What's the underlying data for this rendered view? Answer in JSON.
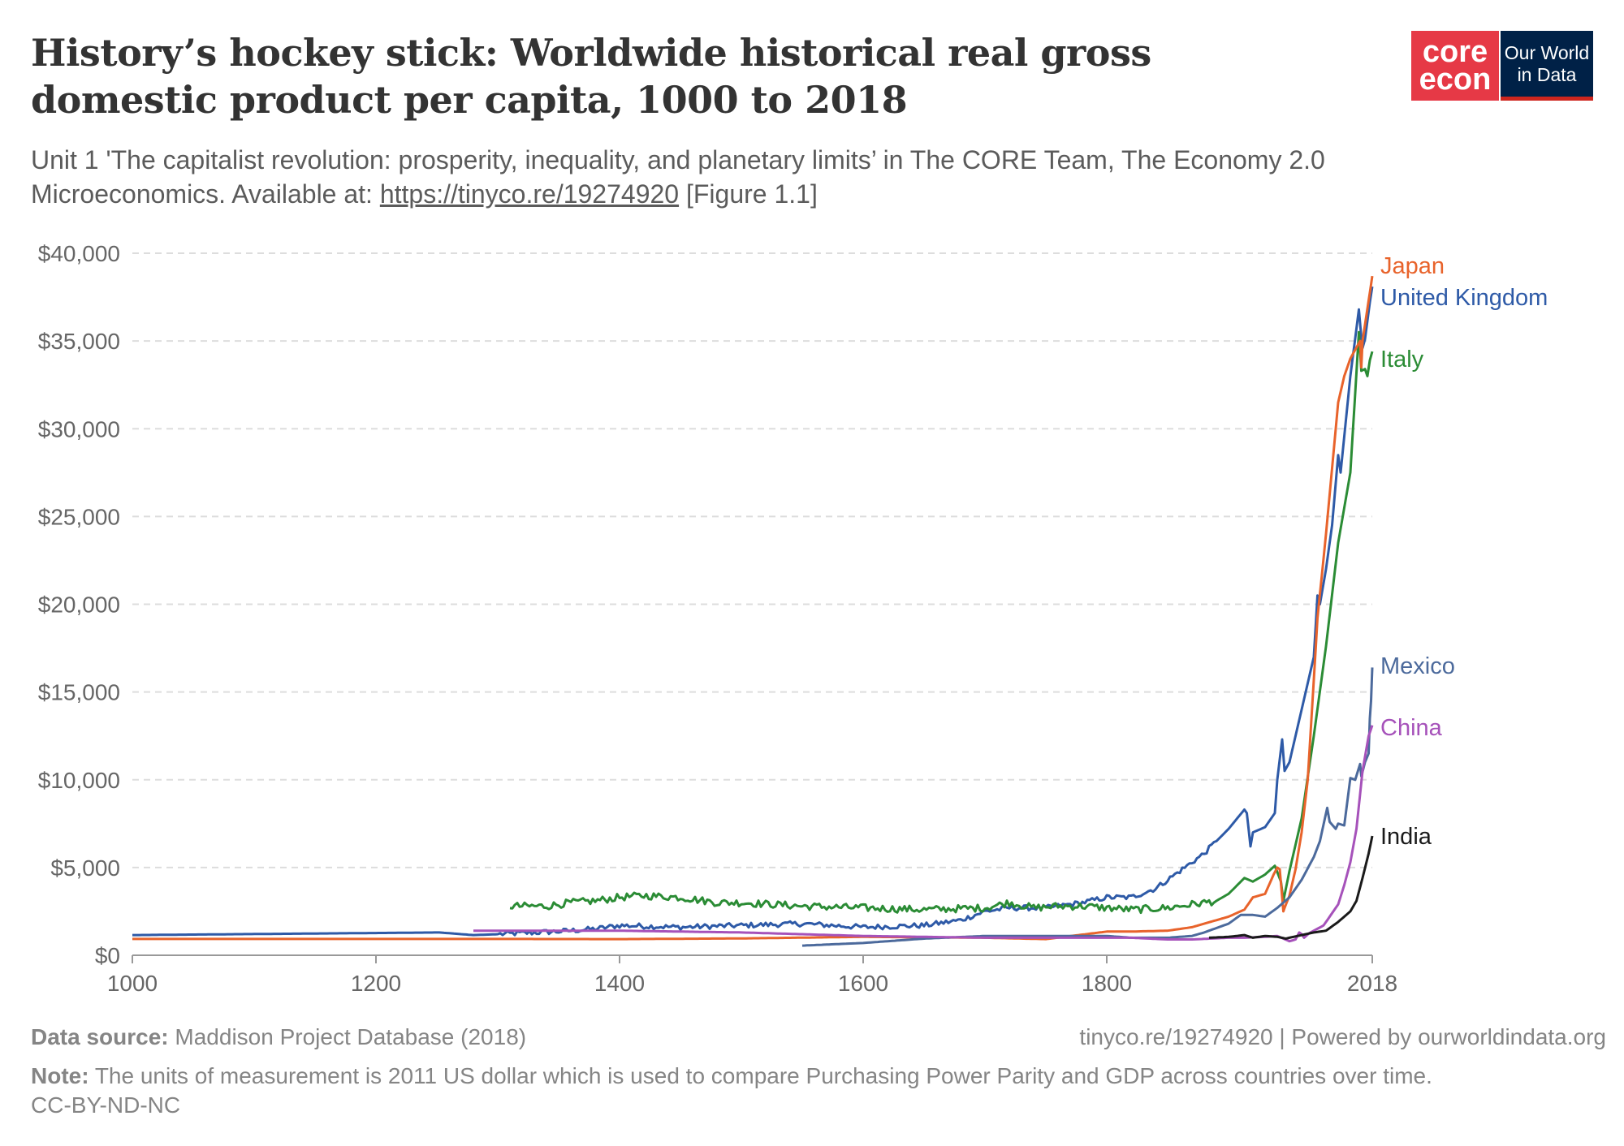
{
  "header": {
    "title": "History’s hockey stick: Worldwide historical real gross domestic product per capita, 1000 to 2018",
    "subtitle_pre": "Unit 1 'The capitalist revolution: prosperity, inequality, and planetary limits’ in The CORE Team, The Economy 2.0 Microeconomics. Available at: ",
    "subtitle_link": "https://tinyco.re/19274920",
    "subtitle_post": " [Figure 1.1]"
  },
  "logos": {
    "core_line1": "core",
    "core_line2": "econ",
    "owid_line1": "Our World",
    "owid_line2": "in Data"
  },
  "footer": {
    "source_label": "Data source:",
    "source_text": "Maddison Project Database (2018)",
    "credit": "tinyco.re/19274920 | Powered by ourworldindata.org",
    "note_label": "Note:",
    "note_text": "The units of measurement is 2011 US dollar which is used to compare Purchasing Power Parity and GDP across countries over time.",
    "license": "CC-BY-ND-NC"
  },
  "chart_data": {
    "type": "line",
    "title": "History’s hockey stick: Worldwide historical real gross domestic product per capita, 1000 to 2018",
    "xlabel": "",
    "ylabel": "",
    "xlim": [
      1000,
      2018
    ],
    "ylim": [
      0,
      40000
    ],
    "x_ticks": [
      1000,
      1200,
      1400,
      1600,
      1800,
      2018
    ],
    "y_ticks": [
      0,
      5000,
      10000,
      15000,
      20000,
      25000,
      30000,
      35000,
      40000
    ],
    "y_tick_labels": [
      "$0",
      "$5,000",
      "$10,000",
      "$15,000",
      "$20,000",
      "$25,000",
      "$30,000",
      "$35,000",
      "$40,000"
    ],
    "grid": "horizontal-dashed",
    "legend": "right, labels at line ends",
    "series": [
      {
        "name": "United Kingdom",
        "color": "#2e5aa7",
        "label_value": 37500,
        "points": [
          [
            1000,
            1150
          ],
          [
            1252,
            1300
          ],
          [
            1280,
            1150
          ],
          [
            1300,
            1200
          ],
          [
            1348,
            1350
          ],
          [
            1380,
            1500
          ],
          [
            1400,
            1700
          ],
          [
            1450,
            1600
          ],
          [
            1500,
            1700
          ],
          [
            1550,
            1800
          ],
          [
            1600,
            1600
          ],
          [
            1650,
            1700
          ],
          [
            1680,
            2000
          ],
          [
            1700,
            2500
          ],
          [
            1720,
            2700
          ],
          [
            1750,
            2700
          ],
          [
            1780,
            3000
          ],
          [
            1800,
            3300
          ],
          [
            1820,
            3300
          ],
          [
            1840,
            3800
          ],
          [
            1860,
            4800
          ],
          [
            1880,
            5800
          ],
          [
            1900,
            7200
          ],
          [
            1913,
            8300
          ],
          [
            1915,
            8100
          ],
          [
            1918,
            6200
          ],
          [
            1920,
            7000
          ],
          [
            1930,
            7300
          ],
          [
            1938,
            8100
          ],
          [
            1940,
            10000
          ],
          [
            1944,
            12300
          ],
          [
            1946,
            10500
          ],
          [
            1950,
            11000
          ],
          [
            1960,
            14000
          ],
          [
            1970,
            17000
          ],
          [
            1973,
            20500
          ],
          [
            1975,
            20000
          ],
          [
            1980,
            22000
          ],
          [
            1985,
            24500
          ],
          [
            1990,
            28500
          ],
          [
            1992,
            27500
          ],
          [
            2000,
            33000
          ],
          [
            2007,
            36800
          ],
          [
            2009,
            35200
          ],
          [
            2010,
            34600
          ],
          [
            2012,
            35100
          ],
          [
            2016,
            37200
          ],
          [
            2018,
            38100
          ]
        ]
      },
      {
        "name": "Italy",
        "color": "#2b8c35",
        "label_value": 34000,
        "points": [
          [
            1310,
            2800
          ],
          [
            1340,
            2800
          ],
          [
            1360,
            3000
          ],
          [
            1380,
            3100
          ],
          [
            1400,
            3300
          ],
          [
            1420,
            3400
          ],
          [
            1450,
            3300
          ],
          [
            1480,
            3000
          ],
          [
            1500,
            3000
          ],
          [
            1550,
            2800
          ],
          [
            1600,
            2700
          ],
          [
            1650,
            2600
          ],
          [
            1700,
            2700
          ],
          [
            1720,
            3000
          ],
          [
            1740,
            2700
          ],
          [
            1760,
            2800
          ],
          [
            1780,
            2800
          ],
          [
            1800,
            2700
          ],
          [
            1820,
            2600
          ],
          [
            1850,
            2700
          ],
          [
            1870,
            2900
          ],
          [
            1890,
            3100
          ],
          [
            1900,
            3500
          ],
          [
            1913,
            4400
          ],
          [
            1920,
            4200
          ],
          [
            1930,
            4600
          ],
          [
            1938,
            5100
          ],
          [
            1943,
            4200
          ],
          [
            1945,
            3100
          ],
          [
            1950,
            4800
          ],
          [
            1960,
            7800
          ],
          [
            1970,
            12500
          ],
          [
            1980,
            17600
          ],
          [
            1990,
            23500
          ],
          [
            2000,
            27500
          ],
          [
            2007,
            35500
          ],
          [
            2009,
            33300
          ],
          [
            2012,
            33400
          ],
          [
            2014,
            33000
          ],
          [
            2016,
            33900
          ],
          [
            2018,
            34400
          ]
        ]
      },
      {
        "name": "Japan",
        "color": "#e8632b",
        "label_value": 39300,
        "points": [
          [
            1000,
            930
          ],
          [
            1200,
            930
          ],
          [
            1300,
            930
          ],
          [
            1400,
            920
          ],
          [
            1500,
            960
          ],
          [
            1600,
            1050
          ],
          [
            1700,
            1000
          ],
          [
            1750,
            920
          ],
          [
            1800,
            1350
          ],
          [
            1820,
            1350
          ],
          [
            1850,
            1400
          ],
          [
            1870,
            1600
          ],
          [
            1880,
            1800
          ],
          [
            1890,
            2000
          ],
          [
            1900,
            2200
          ],
          [
            1913,
            2600
          ],
          [
            1920,
            3300
          ],
          [
            1930,
            3500
          ],
          [
            1937,
            4600
          ],
          [
            1940,
            5000
          ],
          [
            1942,
            4900
          ],
          [
            1945,
            2500
          ],
          [
            1946,
            2700
          ],
          [
            1950,
            3400
          ],
          [
            1955,
            4900
          ],
          [
            1960,
            7000
          ],
          [
            1965,
            10000
          ],
          [
            1970,
            15700
          ],
          [
            1973,
            19200
          ],
          [
            1980,
            24000
          ],
          [
            1990,
            31500
          ],
          [
            1995,
            33000
          ],
          [
            2000,
            34000
          ],
          [
            2008,
            35000
          ],
          [
            2009,
            33500
          ],
          [
            2010,
            35000
          ],
          [
            2015,
            37300
          ],
          [
            2018,
            38700
          ]
        ]
      },
      {
        "name": "Mexico",
        "color": "#4c6a9c",
        "label_value": 16500,
        "points": [
          [
            1550,
            550
          ],
          [
            1600,
            700
          ],
          [
            1650,
            950
          ],
          [
            1700,
            1100
          ],
          [
            1750,
            1100
          ],
          [
            1800,
            1100
          ],
          [
            1820,
            1000
          ],
          [
            1850,
            1000
          ],
          [
            1870,
            1100
          ],
          [
            1880,
            1300
          ],
          [
            1900,
            1800
          ],
          [
            1910,
            2300
          ],
          [
            1920,
            2300
          ],
          [
            1930,
            2200
          ],
          [
            1940,
            2700
          ],
          [
            1950,
            3300
          ],
          [
            1960,
            4300
          ],
          [
            1970,
            5600
          ],
          [
            1975,
            6500
          ],
          [
            1981,
            8400
          ],
          [
            1983,
            7600
          ],
          [
            1988,
            7200
          ],
          [
            1990,
            7500
          ],
          [
            1995,
            7400
          ],
          [
            2000,
            10100
          ],
          [
            2004,
            10000
          ],
          [
            2008,
            10900
          ],
          [
            2009,
            10200
          ],
          [
            2012,
            11000
          ],
          [
            2015,
            11500
          ],
          [
            2016,
            13500
          ],
          [
            2017,
            14500
          ],
          [
            2018,
            16400
          ]
        ]
      },
      {
        "name": "China",
        "color": "#a652ba",
        "label_value": 13000,
        "points": [
          [
            1280,
            1400
          ],
          [
            1400,
            1400
          ],
          [
            1500,
            1300
          ],
          [
            1600,
            1100
          ],
          [
            1700,
            1000
          ],
          [
            1800,
            1000
          ],
          [
            1820,
            1000
          ],
          [
            1850,
            900
          ],
          [
            1870,
            900
          ],
          [
            1900,
            1000
          ],
          [
            1913,
            1000
          ],
          [
            1930,
            1050
          ],
          [
            1940,
            1100
          ],
          [
            1950,
            800
          ],
          [
            1955,
            900
          ],
          [
            1958,
            1300
          ],
          [
            1960,
            1200
          ],
          [
            1962,
            1000
          ],
          [
            1966,
            1250
          ],
          [
            1970,
            1400
          ],
          [
            1978,
            1700
          ],
          [
            1985,
            2400
          ],
          [
            1990,
            2900
          ],
          [
            1995,
            4000
          ],
          [
            2000,
            5300
          ],
          [
            2005,
            7200
          ],
          [
            2010,
            10500
          ],
          [
            2015,
            12500
          ],
          [
            2018,
            13100
          ]
        ]
      },
      {
        "name": "India",
        "color": "#1a1a1a",
        "label_value": 6800,
        "points": [
          [
            1884,
            1000
          ],
          [
            1900,
            1050
          ],
          [
            1913,
            1150
          ],
          [
            1920,
            1000
          ],
          [
            1930,
            1100
          ],
          [
            1940,
            1050
          ],
          [
            1947,
            950
          ],
          [
            1950,
            1000
          ],
          [
            1960,
            1150
          ],
          [
            1970,
            1300
          ],
          [
            1980,
            1400
          ],
          [
            1990,
            1900
          ],
          [
            2000,
            2500
          ],
          [
            2005,
            3100
          ],
          [
            2010,
            4400
          ],
          [
            2015,
            5800
          ],
          [
            2018,
            6800
          ]
        ]
      }
    ]
  }
}
